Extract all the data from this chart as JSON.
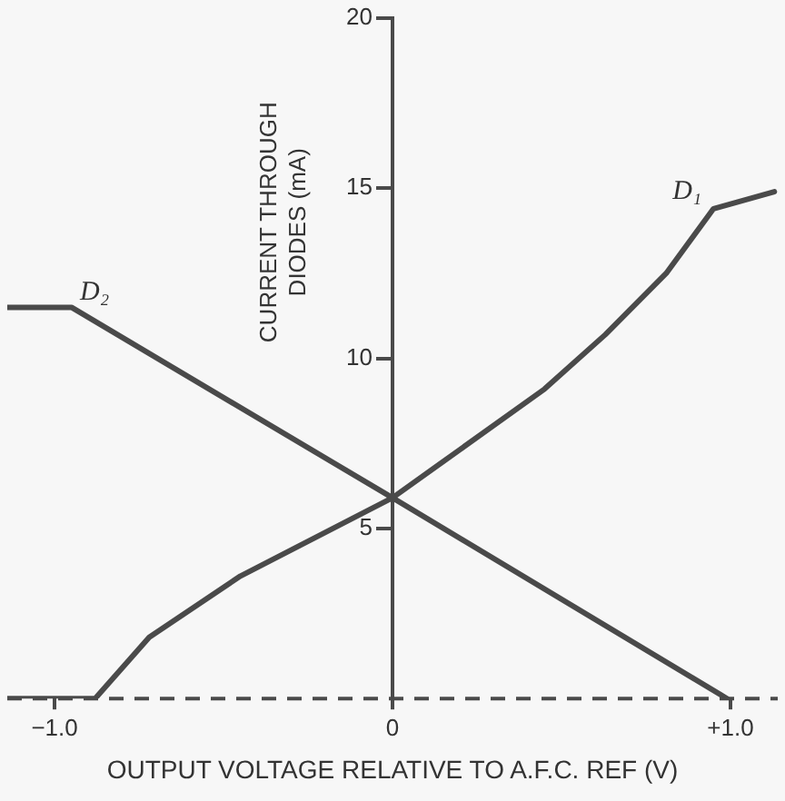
{
  "chart_data": {
    "type": "line",
    "xlabel": "OUTPUT VOLTAGE RELATIVE TO A.F.C. REF (V)",
    "ylabel": "CURRENT THROUGH DIODES (mA)",
    "xlim": [
      -1.14,
      1.14
    ],
    "xticks": [
      {
        "value": -1,
        "label": "−1.0"
      },
      0,
      {
        "value": 1,
        "label": "+1.0"
      }
    ],
    "ylim": [
      0,
      20
    ],
    "yticks": [
      5,
      10,
      15,
      20
    ],
    "grid": false,
    "legend": false,
    "marker": "none",
    "line_style": "solid",
    "series": [
      {
        "name": "D₁",
        "color": "#4a4a4a",
        "x": [
          -1.14,
          -0.88,
          -0.72,
          -0.45,
          0,
          0.45,
          0.63,
          0.81,
          0.95,
          1.13
        ],
        "values": [
          0,
          0,
          1.8,
          3.6,
          5.9,
          9.1,
          10.7,
          12.5,
          14.4,
          14.9
        ]
      },
      {
        "name": "D₂",
        "color": "#4a4a4a",
        "x": [
          -1.14,
          -0.95,
          0,
          0.99
        ],
        "values": [
          11.5,
          11.5,
          5.9,
          0
        ]
      }
    ],
    "ref_lines": [
      {
        "axis": "y",
        "value": 0,
        "label": null,
        "line_style": "dashed",
        "color": "#4a4a4a"
      }
    ]
  }
}
